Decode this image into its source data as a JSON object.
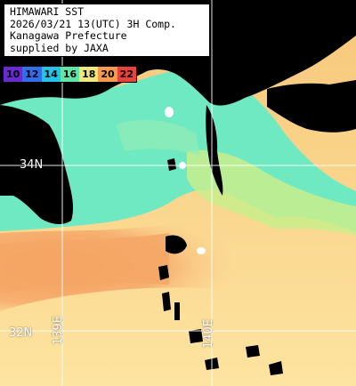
{
  "header": {
    "line1": "HIMAWARI SST",
    "line2": "2026/03/21 13(UTC) 3H Comp.",
    "line3": "Kanagawa Prefecture",
    "line4": "supplied by JAXA"
  },
  "colorbar": {
    "cells": [
      {
        "label": "10",
        "color": "#6a2ad2"
      },
      {
        "label": "12",
        "color": "#2e6ff0"
      },
      {
        "label": "14",
        "color": "#22c4e8"
      },
      {
        "label": "16",
        "color": "#5fe7a7"
      },
      {
        "label": "18",
        "color": "#f1e879"
      },
      {
        "label": "20",
        "color": "#f89a4e"
      },
      {
        "label": "22",
        "color": "#e8423b"
      }
    ]
  },
  "grid_labels": {
    "lat_34": "34N",
    "lat_32": "32N",
    "lon_139": "139E",
    "lon_140": "140E"
  },
  "colors": {
    "land": "#000000",
    "cold_water": "#6ee9c2",
    "mid_water": "#c9ee8c",
    "warm_water": "#fbd991",
    "hot_water": "#f6a766",
    "grid": "#ffffff"
  }
}
